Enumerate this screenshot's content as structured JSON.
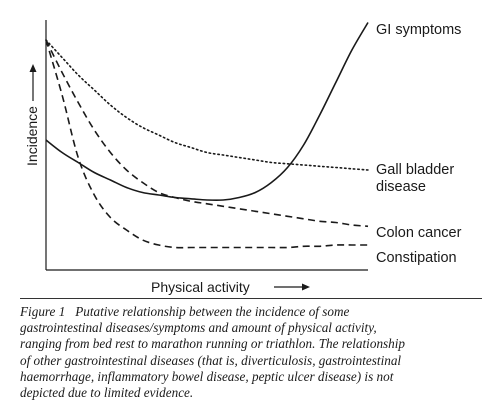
{
  "chart_data": {
    "type": "line",
    "title": "",
    "xlabel": "Physical activity",
    "ylabel": "Incidence",
    "xlim": [
      0,
      1
    ],
    "ylim": [
      0,
      1
    ],
    "grid": false,
    "legend": "labels at line ends (right)",
    "x": [
      0.0,
      0.05,
      0.1,
      0.15,
      0.2,
      0.25,
      0.3,
      0.35,
      0.4,
      0.45,
      0.5,
      0.55,
      0.6,
      0.65,
      0.7,
      0.75,
      0.8,
      0.85,
      0.9,
      0.95,
      1.0
    ],
    "series": [
      {
        "name": "GI symptoms",
        "style": "solid",
        "values": [
          0.52,
          0.47,
          0.43,
          0.39,
          0.36,
          0.33,
          0.31,
          0.3,
          0.29,
          0.285,
          0.28,
          0.28,
          0.29,
          0.31,
          0.35,
          0.41,
          0.5,
          0.62,
          0.75,
          0.88,
          0.99
        ]
      },
      {
        "name": "Gall bladder disease",
        "style": "dotted",
        "values": [
          0.92,
          0.85,
          0.78,
          0.72,
          0.66,
          0.61,
          0.57,
          0.54,
          0.51,
          0.49,
          0.47,
          0.46,
          0.45,
          0.44,
          0.43,
          0.425,
          0.42,
          0.415,
          0.41,
          0.405,
          0.4
        ]
      },
      {
        "name": "Colon cancer",
        "style": "dashed",
        "values": [
          0.92,
          0.79,
          0.67,
          0.56,
          0.47,
          0.4,
          0.35,
          0.31,
          0.29,
          0.275,
          0.265,
          0.255,
          0.245,
          0.235,
          0.225,
          0.215,
          0.205,
          0.195,
          0.19,
          0.18,
          0.175
        ]
      },
      {
        "name": "Constipation",
        "style": "dashed",
        "values": [
          0.92,
          0.7,
          0.45,
          0.3,
          0.21,
          0.16,
          0.12,
          0.1,
          0.09,
          0.09,
          0.09,
          0.09,
          0.09,
          0.09,
          0.09,
          0.09,
          0.095,
          0.095,
          0.1,
          0.1,
          0.1
        ]
      }
    ]
  },
  "labels": {
    "gi": "GI symptoms",
    "gall1": "Gall bladder",
    "gall2": "disease",
    "colon": "Colon cancer",
    "constipation": "Constipation"
  },
  "caption": {
    "prefix": "Figure 1",
    "line1": "Putative relationship between the incidence of some",
    "line2": "gastrointestinal diseases/symptoms and amount of physical activity,",
    "line3": "ranging from bed rest to marathon running or triathlon. The relationship",
    "line4": "of other gastrointestinal diseases (that is, diverticulosis, gastrointestinal",
    "line5": "haemorrhage, inflammatory bowel disease, peptic ulcer disease) is not",
    "line6": "depicted due to limited evidence."
  }
}
